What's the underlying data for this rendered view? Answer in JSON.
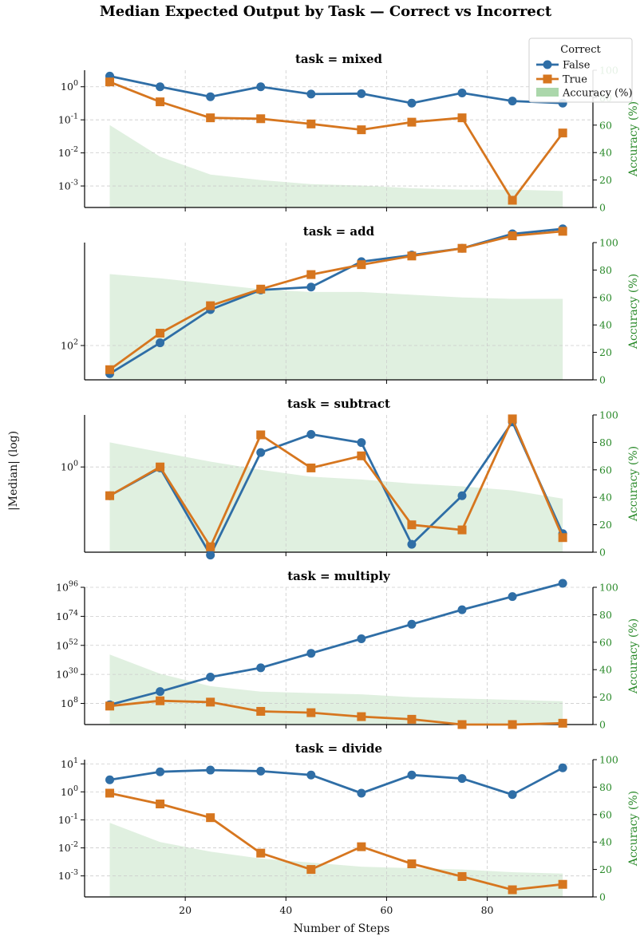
{
  "title": "Median Expected Output by Task — Correct vs Incorrect",
  "ylabel": "|Median| (log)",
  "xlabel": "Number of Steps",
  "right_ylabel": "Accuracy (%)",
  "legend": {
    "title": "Correct",
    "items": [
      "False",
      "True",
      "Accuracy (%)"
    ]
  },
  "colors": {
    "false": "#2f6ea6",
    "true": "#d6761f",
    "accuracy": "#8fc98f"
  },
  "chart_data": [
    {
      "type": "line",
      "title": "task = mixed",
      "x": [
        5,
        15,
        25,
        35,
        45,
        55,
        65,
        75,
        85,
        95
      ],
      "yscale": "log",
      "ylim_log10": [
        -3.65,
        0.5
      ],
      "yticks": [
        {
          "v": 0,
          "label": "10^0"
        },
        {
          "v": -1,
          "label": "10^-1"
        },
        {
          "v": -2,
          "label": "10^-2"
        },
        {
          "v": -3,
          "label": "10^-3"
        }
      ],
      "series": [
        {
          "name": "False",
          "values": [
            2.1,
            1.0,
            0.5,
            1.0,
            0.6,
            0.62,
            0.32,
            0.65,
            0.37,
            0.32
          ]
        },
        {
          "name": "True",
          "values": [
            1.4,
            0.35,
            0.115,
            0.108,
            0.075,
            0.05,
            0.085,
            0.115,
            0.00037,
            0.04
          ]
        }
      ],
      "accuracy": [
        60,
        37,
        24,
        20,
        17,
        16,
        14,
        13,
        13,
        12
      ]
    },
    {
      "type": "line",
      "title": "task = add",
      "x": [
        5,
        15,
        25,
        35,
        45,
        55,
        65,
        75,
        85,
        95
      ],
      "yscale": "log",
      "ylim_log10": [
        1.78,
        2.66
      ],
      "yticks": [
        {
          "v": 2,
          "label": "10^2"
        }
      ],
      "series": [
        {
          "name": "False",
          "values": [
            66,
            104,
            170,
            227,
            237,
            345,
            380,
            420,
            520,
            560
          ]
        },
        {
          "name": "True",
          "values": [
            70,
            120,
            180,
            230,
            285,
            330,
            375,
            420,
            505,
            540
          ]
        }
      ],
      "accuracy": [
        77,
        74,
        70,
        66,
        64,
        64,
        62,
        60,
        59,
        59
      ]
    },
    {
      "type": "line",
      "title": "task = subtract",
      "x": [
        5,
        15,
        25,
        35,
        45,
        55,
        65,
        75,
        85,
        95
      ],
      "yscale": "log",
      "ylim_log10": [
        -0.77,
        0.47
      ],
      "yticks": [
        {
          "v": 0,
          "label": "10^0"
        }
      ],
      "series": [
        {
          "name": "False",
          "values": [
            0.55,
            0.98,
            0.16,
            1.35,
            1.97,
            1.66,
            0.2,
            0.55,
            2.55,
            0.25
          ]
        },
        {
          "name": "True",
          "values": [
            0.55,
            1.0,
            0.19,
            1.95,
            0.98,
            1.26,
            0.3,
            0.27,
            2.72,
            0.23
          ]
        }
      ],
      "accuracy": [
        80,
        73,
        66,
        60,
        55,
        53,
        50,
        48,
        45,
        39
      ]
    },
    {
      "type": "line",
      "title": "task = multiply",
      "x": [
        5,
        15,
        25,
        35,
        45,
        55,
        65,
        75,
        85,
        95
      ],
      "yscale": "log",
      "ylim_log10": [
        -8,
        96
      ],
      "yticks": [
        {
          "v": 96,
          "label": "10^96"
        },
        {
          "v": 74,
          "label": "10^74"
        },
        {
          "v": 52,
          "label": "10^52"
        },
        {
          "v": 30,
          "label": "10^30"
        },
        {
          "v": 8,
          "label": "10^8"
        }
      ],
      "series": [
        {
          "name": "False",
          "values": [
            "1e7",
            "1e17",
            "1e28",
            "1e35",
            "1e46",
            "1e57",
            "1e68",
            "1e79",
            "1e89",
            "1e99"
          ]
        },
        {
          "name": "True",
          "values": [
            "1e6",
            "1e10",
            "1e9",
            "1e2",
            "1e1",
            "1e-2",
            "1e-4",
            "1e-8",
            "1e-8",
            "1e-7"
          ]
        }
      ],
      "accuracy": [
        51,
        37,
        28,
        24,
        23,
        22,
        20,
        19,
        18,
        17
      ]
    },
    {
      "type": "line",
      "title": "task = divide",
      "x": [
        5,
        15,
        25,
        35,
        45,
        55,
        65,
        75,
        85,
        95
      ],
      "yscale": "log",
      "ylim_log10": [
        -3.75,
        1.15
      ],
      "yticks": [
        {
          "v": 1,
          "label": "10^1"
        },
        {
          "v": 0,
          "label": "10^0"
        },
        {
          "v": -1,
          "label": "10^-1"
        },
        {
          "v": -2,
          "label": "10^-2"
        },
        {
          "v": -3,
          "label": "10^-3"
        }
      ],
      "series": [
        {
          "name": "False",
          "values": [
            2.7,
            5.2,
            6.0,
            5.5,
            4.0,
            0.9,
            4.0,
            3.0,
            0.8,
            7.2
          ]
        },
        {
          "name": "True",
          "values": [
            0.9,
            0.37,
            0.12,
            0.0065,
            0.0017,
            0.011,
            0.0027,
            0.00095,
            0.00032,
            0.0005
          ]
        }
      ],
      "accuracy": [
        54,
        40,
        33,
        28,
        25,
        22,
        21,
        20,
        18,
        17
      ]
    }
  ],
  "shared_x": {
    "xlim": [
      0,
      101
    ],
    "ticks": [
      "20",
      "40",
      "60",
      "80"
    ],
    "tick_values": [
      20,
      40,
      60,
      80
    ]
  },
  "right_y": {
    "ylim": [
      0,
      100
    ],
    "ticks": [
      "0",
      "20",
      "40",
      "60",
      "80",
      "100"
    ]
  }
}
